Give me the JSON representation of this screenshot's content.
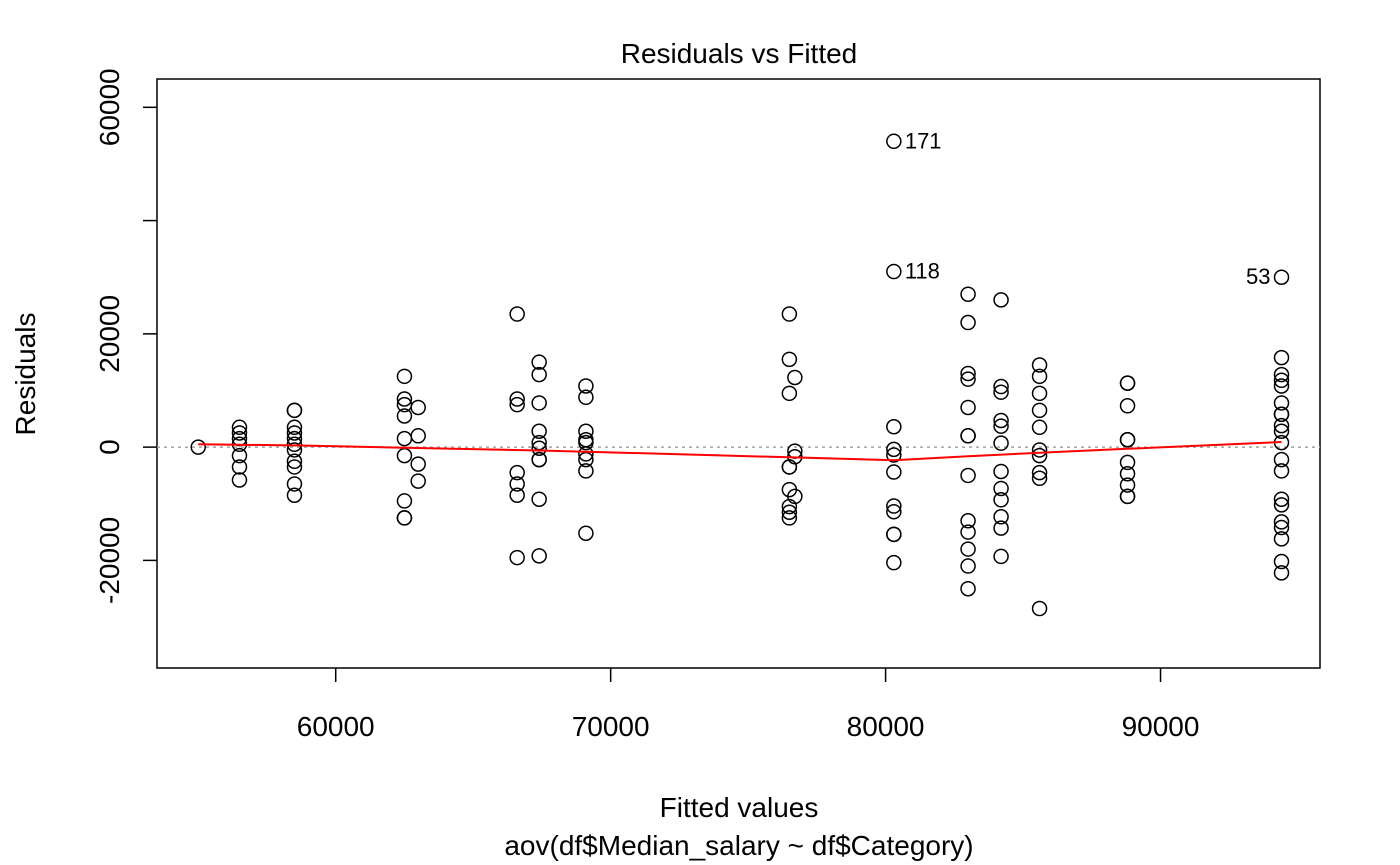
{
  "chart_data": {
    "type": "scatter",
    "title": "Residuals vs Fitted",
    "xlabel": "Fitted values",
    "subtitle": "aov(df$Median_salary ~ df$Category)",
    "ylabel": "Residuals",
    "xlim": [
      53500,
      95800
    ],
    "ylim": [
      -39000,
      65000
    ],
    "x_ticks": [
      60000,
      70000,
      80000,
      90000
    ],
    "y_ticks": [
      -20000,
      0,
      20000,
      40000,
      60000
    ],
    "y_tick_labels": [
      "-20000",
      "0",
      "20000",
      "",
      "60000"
    ],
    "grid": false,
    "zero_line": true,
    "point_color": "#000000",
    "smooth_color": "#ff0000",
    "reference_color": "#a0a0a0",
    "points": [
      [
        55000,
        0
      ],
      [
        56500,
        3500
      ],
      [
        56500,
        2500
      ],
      [
        56500,
        1500
      ],
      [
        56500,
        500
      ],
      [
        56500,
        -1500
      ],
      [
        56500,
        -3500
      ],
      [
        56500,
        -5800
      ],
      [
        58500,
        6500
      ],
      [
        58500,
        6500
      ],
      [
        58500,
        3500
      ],
      [
        58500,
        2500
      ],
      [
        58500,
        1500
      ],
      [
        58500,
        500
      ],
      [
        58500,
        -500
      ],
      [
        58500,
        -2500
      ],
      [
        58500,
        -3500
      ],
      [
        58500,
        -6500
      ],
      [
        58500,
        -8500
      ],
      [
        62500,
        12500
      ],
      [
        62500,
        8500
      ],
      [
        62500,
        7500
      ],
      [
        62500,
        5500
      ],
      [
        62500,
        1500
      ],
      [
        62500,
        -1500
      ],
      [
        62500,
        -9500
      ],
      [
        62500,
        -12500
      ],
      [
        62500,
        -12500
      ],
      [
        63000,
        7000
      ],
      [
        63000,
        2000
      ],
      [
        63000,
        -3000
      ],
      [
        63000,
        -6000
      ],
      [
        66600,
        23500
      ],
      [
        66600,
        8500
      ],
      [
        66600,
        7500
      ],
      [
        66600,
        -4500
      ],
      [
        66600,
        -6500
      ],
      [
        66600,
        -8500
      ],
      [
        66600,
        -19500
      ],
      [
        67400,
        15000
      ],
      [
        67400,
        12800
      ],
      [
        67400,
        7800
      ],
      [
        67400,
        2800
      ],
      [
        67400,
        800
      ],
      [
        67400,
        -200
      ],
      [
        67400,
        -2200
      ],
      [
        67400,
        -2200
      ],
      [
        67400,
        -9200
      ],
      [
        67400,
        -19200
      ],
      [
        69100,
        10800
      ],
      [
        69100,
        8800
      ],
      [
        69100,
        2800
      ],
      [
        69100,
        1300
      ],
      [
        69100,
        800
      ],
      [
        69100,
        -1200
      ],
      [
        69100,
        -2200
      ],
      [
        69100,
        -4200
      ],
      [
        69100,
        -15200
      ],
      [
        76500,
        23500
      ],
      [
        76500,
        15500
      ],
      [
        76500,
        9500
      ],
      [
        76500,
        -3500
      ],
      [
        76500,
        -3500
      ],
      [
        76500,
        -7500
      ],
      [
        76500,
        -10500
      ],
      [
        76500,
        -11500
      ],
      [
        76500,
        -12500
      ],
      [
        76700,
        12300
      ],
      [
        76700,
        -700
      ],
      [
        76700,
        -1700
      ],
      [
        76700,
        -8700
      ],
      [
        80300,
        54000
      ],
      [
        80300,
        31000
      ],
      [
        80300,
        3600
      ],
      [
        80300,
        -400
      ],
      [
        80300,
        -1400
      ],
      [
        80300,
        -4400
      ],
      [
        80300,
        -10400
      ],
      [
        80300,
        -11400
      ],
      [
        80300,
        -15400
      ],
      [
        80300,
        -15400
      ],
      [
        80300,
        -20400
      ],
      [
        83000,
        27000
      ],
      [
        83000,
        22000
      ],
      [
        83000,
        13000
      ],
      [
        83000,
        12000
      ],
      [
        83000,
        7000
      ],
      [
        83000,
        2000
      ],
      [
        83000,
        2000
      ],
      [
        83000,
        -5000
      ],
      [
        83000,
        -13000
      ],
      [
        83000,
        -15000
      ],
      [
        83000,
        -18000
      ],
      [
        83000,
        -21000
      ],
      [
        83000,
        -25000
      ],
      [
        84200,
        26000
      ],
      [
        84200,
        10700
      ],
      [
        84200,
        9700
      ],
      [
        84200,
        4700
      ],
      [
        84200,
        3700
      ],
      [
        84200,
        700
      ],
      [
        84200,
        -4300
      ],
      [
        84200,
        -7300
      ],
      [
        84200,
        -9300
      ],
      [
        84200,
        -12300
      ],
      [
        84200,
        -14300
      ],
      [
        84200,
        -19300
      ],
      [
        85600,
        14500
      ],
      [
        85600,
        12500
      ],
      [
        85600,
        9500
      ],
      [
        85600,
        6500
      ],
      [
        85600,
        3500
      ],
      [
        85600,
        -500
      ],
      [
        85600,
        -1500
      ],
      [
        85600,
        -4500
      ],
      [
        85600,
        -5500
      ],
      [
        85600,
        -28500
      ],
      [
        88800,
        11300
      ],
      [
        88800,
        11300
      ],
      [
        88800,
        7300
      ],
      [
        88800,
        1300
      ],
      [
        88800,
        1300
      ],
      [
        88800,
        -2700
      ],
      [
        88800,
        -4700
      ],
      [
        88800,
        -6700
      ],
      [
        88800,
        -8700
      ],
      [
        88800,
        -8700
      ],
      [
        94400,
        30000
      ],
      [
        94400,
        15800
      ],
      [
        94400,
        12800
      ],
      [
        94400,
        11800
      ],
      [
        94400,
        10800
      ],
      [
        94400,
        7800
      ],
      [
        94400,
        5800
      ],
      [
        94400,
        5800
      ],
      [
        94400,
        3800
      ],
      [
        94400,
        2800
      ],
      [
        94400,
        800
      ],
      [
        94400,
        -2200
      ],
      [
        94400,
        -4200
      ],
      [
        94400,
        -9200
      ],
      [
        94400,
        -10200
      ],
      [
        94400,
        -13200
      ],
      [
        94400,
        -14200
      ],
      [
        94400,
        -16200
      ],
      [
        94400,
        -20200
      ],
      [
        94400,
        -22200
      ]
    ],
    "smooth_line": [
      [
        55000,
        500
      ],
      [
        58500,
        300
      ],
      [
        62500,
        -100
      ],
      [
        67400,
        -600
      ],
      [
        69100,
        -800
      ],
      [
        76500,
        -1800
      ],
      [
        80300,
        -2300
      ],
      [
        83000,
        -1600
      ],
      [
        85600,
        -1000
      ],
      [
        88800,
        -300
      ],
      [
        94400,
        900
      ]
    ],
    "annotations": [
      {
        "label": "171",
        "x": 80300,
        "y": 54000,
        "side": "right"
      },
      {
        "label": "118",
        "x": 80300,
        "y": 31000,
        "side": "right"
      },
      {
        "label": "53",
        "x": 94400,
        "y": 30000,
        "side": "left"
      }
    ]
  }
}
